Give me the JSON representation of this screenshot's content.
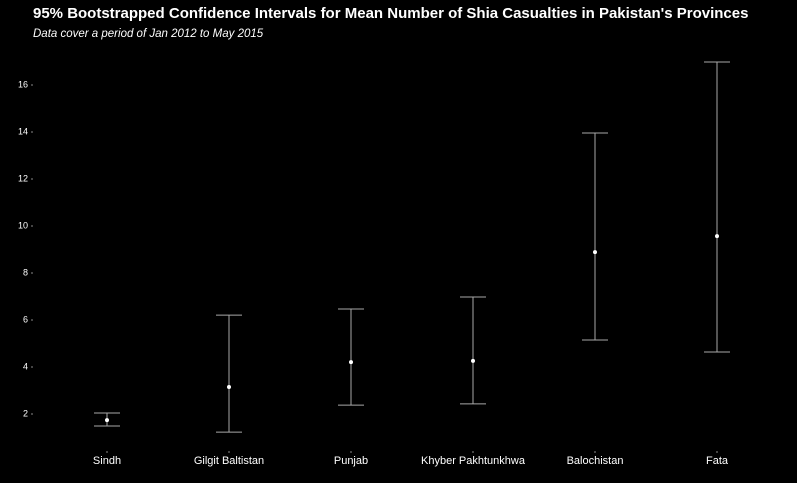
{
  "chart_data": {
    "type": "errorbar",
    "title": "95% Bootstrapped Confidence Intervals for Mean Number of Shia Casualties in Pakistan's Provinces",
    "subtitle": "Data cover a period of Jan 2012  to May 2015",
    "categories": [
      "Sindh",
      "Gilgit Baltistan",
      "Punjab",
      "Khyber Pakhtunkhwa",
      "Balochistan",
      "Fata"
    ],
    "values": [
      1.74,
      3.15,
      4.21,
      4.26,
      8.89,
      9.57
    ],
    "lower": [
      1.49,
      1.23,
      2.38,
      2.43,
      5.15,
      4.64
    ],
    "upper": [
      2.04,
      6.21,
      6.47,
      6.98,
      13.96,
      16.98
    ],
    "color": "#ffffff",
    "bar_color": "#a8a8a8",
    "ylim": [
      0.5,
      17.5
    ],
    "yticks": [
      2,
      4,
      6,
      8,
      10,
      12,
      14,
      16
    ],
    "grid": false
  }
}
